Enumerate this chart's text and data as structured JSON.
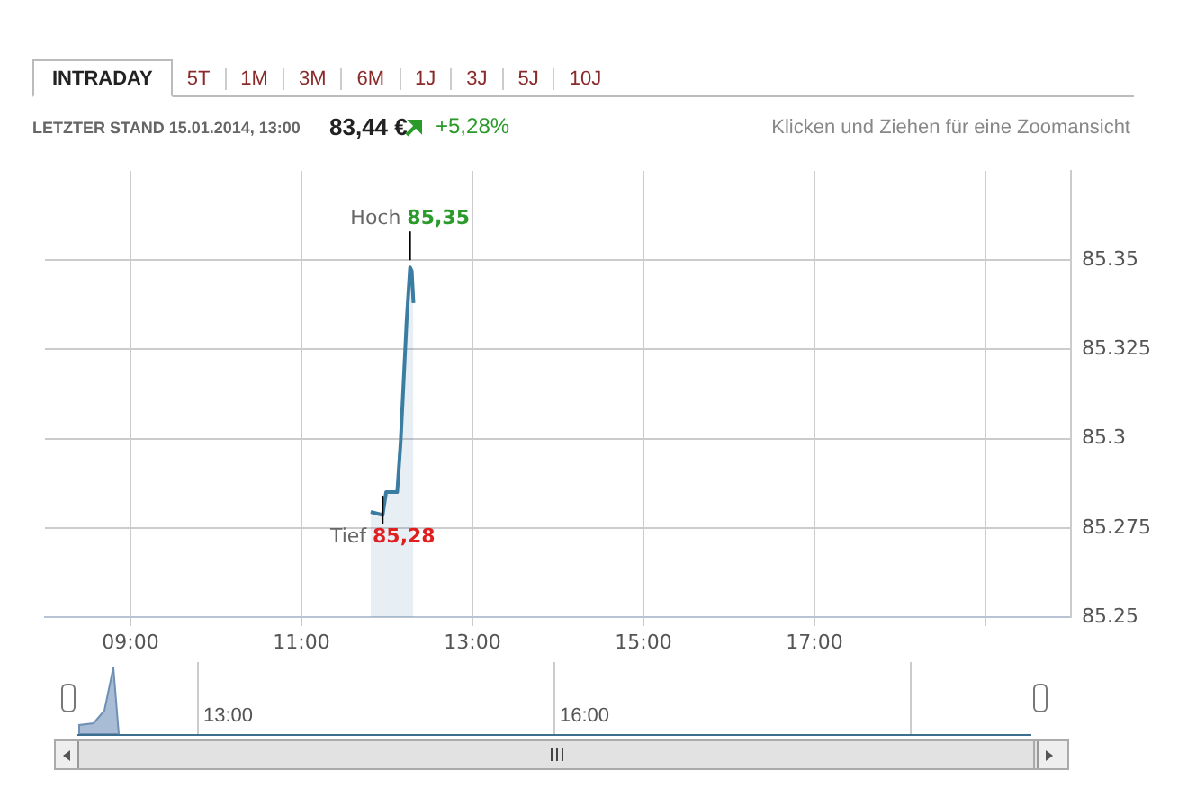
{
  "chart_data": [
    {
      "type": "area",
      "x": [
        11.81,
        11.95,
        11.99,
        12.12,
        12.16,
        12.23,
        12.27,
        12.29,
        12.31
      ],
      "series": [
        {
          "color": "#3b7ca3",
          "values": [
            85.2795,
            85.2786,
            85.285,
            85.285,
            85.299,
            85.333,
            85.348,
            85.347,
            85.338
          ]
        }
      ],
      "xlim": [
        8,
        20
      ],
      "xticks": [
        {
          "value": 9,
          "label": "09:00"
        },
        {
          "value": 11,
          "label": "11:00"
        },
        {
          "value": 13,
          "label": "13:00"
        },
        {
          "value": 15,
          "label": "15:00"
        },
        {
          "value": 17,
          "label": "17:00"
        },
        {
          "value": 19,
          "label": null
        }
      ],
      "ylim": [
        85.25,
        85.375
      ],
      "yticks": [
        85.25,
        85.275,
        85.3,
        85.325,
        85.35
      ],
      "grid": true,
      "legend": false,
      "annotations": [
        "INTRADAY",
        "5T",
        "1M",
        "3M",
        "6M",
        "1J",
        "3J",
        "5J",
        "10J",
        "LETZTER STAND 15.01.2014, 13:00",
        "83,44 €",
        "+5,28%",
        "Klicken und Ziehen für eine Zoomansicht",
        {
          "text": "Hoch 85,35",
          "x": 12.27,
          "y": 85.35
        },
        {
          "text": "Tief 85,28",
          "x": 11.95,
          "y": 85.28
        }
      ]
    },
    {
      "type": "other",
      "annotations": [
        "13:00",
        "16:00"
      ]
    }
  ]
}
